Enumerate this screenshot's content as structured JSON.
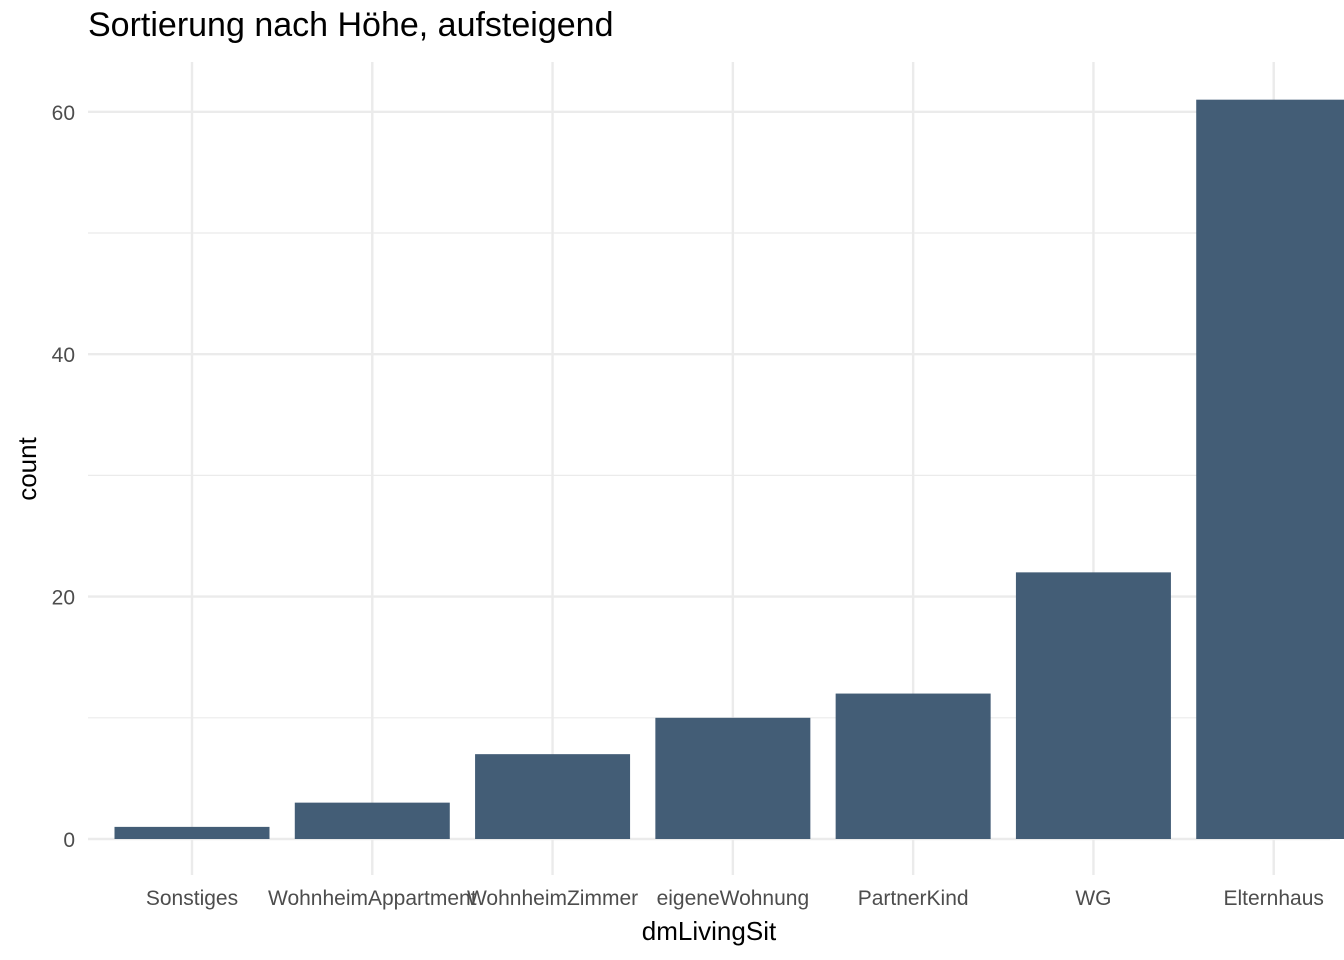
{
  "chart_data": {
    "type": "bar",
    "title": "Sortierung nach Höhe, aufsteigend",
    "xlabel": "dmLivingSit",
    "ylabel": "count",
    "categories": [
      "Sonstiges",
      "WohnheimAppartment",
      "WohnheimZimmer",
      "eigeneWohnung",
      "PartnerKind",
      "WG",
      "Elternhaus"
    ],
    "values": [
      1,
      3,
      7,
      10,
      12,
      22,
      61
    ],
    "yticks": [
      0,
      20,
      40,
      60
    ],
    "ylim": [
      0,
      65
    ],
    "grid": true,
    "legend": "none",
    "bar_color": "#435d76",
    "grid_color": "#ebebeb"
  }
}
